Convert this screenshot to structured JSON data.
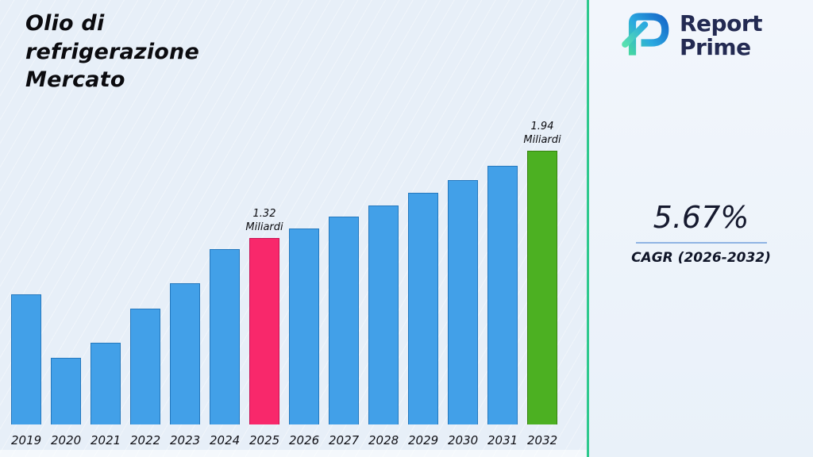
{
  "title": "Olio di refrigerazione Mercato",
  "logo": {
    "line1": "Report",
    "line2": "Prime"
  },
  "stats": {
    "cagr_value": "5.67%",
    "cagr_label": "CAGR (2026-2032)"
  },
  "colors": {
    "bar": "#42a0e8",
    "bar_border": "#2478be",
    "highlight_2025": "#f8286b",
    "highlight_2032": "#4cb022",
    "separator": "#2ec98e",
    "accent_line": "#8fb4e3"
  },
  "chart_data": {
    "type": "bar",
    "title": "Olio di refrigerazione Mercato",
    "xlabel": "",
    "ylabel": "Miliardi",
    "unit": "Miliardi",
    "grid": false,
    "legend": false,
    "ylim": [
      0,
      2.1
    ],
    "categories": [
      "2019",
      "2020",
      "2021",
      "2022",
      "2023",
      "2024",
      "2025",
      "2026",
      "2027",
      "2028",
      "2029",
      "2030",
      "2031",
      "2032"
    ],
    "values": [
      0.92,
      0.47,
      0.58,
      0.82,
      1.0,
      1.24,
      1.32,
      1.39,
      1.47,
      1.55,
      1.64,
      1.73,
      1.83,
      1.94
    ],
    "highlights": [
      {
        "category": "2025",
        "value_label": "1.32",
        "unit_label": "Miliardi",
        "color": "#f8286b",
        "border_color": "#c91252"
      },
      {
        "category": "2032",
        "value_label": "1.94",
        "unit_label": "Miliardi",
        "color": "#4cb022",
        "border_color": "#36830f"
      }
    ]
  }
}
